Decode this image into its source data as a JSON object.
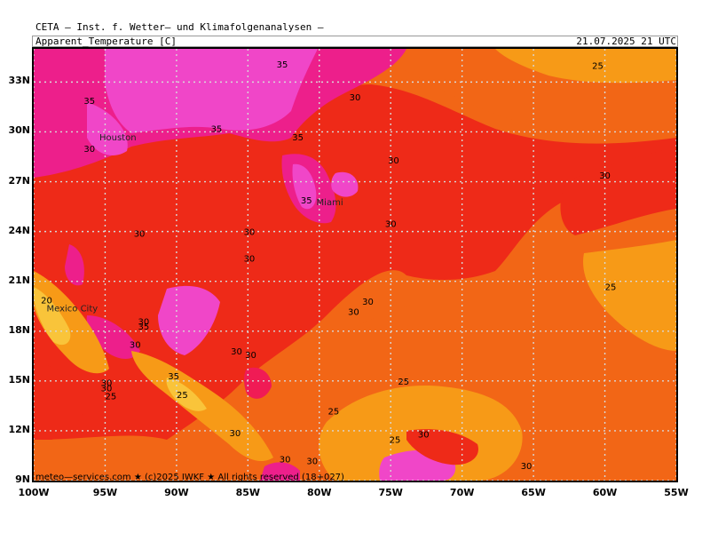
{
  "header": {
    "institute": "CETA — Inst. f. Wetter— und Klimafolgenanalysen —",
    "variable": "Apparent_Temperature [C]",
    "valid_time": "21.07.2025 21 UTC"
  },
  "axes": {
    "lat_labels": [
      "33N",
      "30N",
      "27N",
      "24N",
      "21N",
      "18N",
      "15N",
      "12N",
      "9N"
    ],
    "lon_labels": [
      "100W",
      "95W",
      "90W",
      "85W",
      "80W",
      "75W",
      "70W",
      "65W",
      "60W",
      "55W"
    ],
    "lat_values": [
      33,
      30,
      27,
      24,
      21,
      18,
      15,
      12,
      9
    ],
    "lon_values": [
      -100,
      -95,
      -90,
      -85,
      -80,
      -75,
      -70,
      -65,
      -60,
      -55
    ],
    "lat_range": [
      9,
      35
    ],
    "lon_range": [
      -100,
      -55
    ]
  },
  "places": [
    {
      "name": "Houston",
      "lat": 29.7,
      "lon": -95.4
    },
    {
      "name": "Miami",
      "lat": 25.8,
      "lon": -80.2
    },
    {
      "name": "Mexico City",
      "lat": 19.4,
      "lon": -99.1
    }
  ],
  "contour_labels": [
    {
      "text": "35",
      "lat": 34.1,
      "lon": -82.6
    },
    {
      "text": "35",
      "lat": 31.9,
      "lon": -96.1
    },
    {
      "text": "35",
      "lat": 30.2,
      "lon": -87.2
    },
    {
      "text": "35",
      "lat": 29.7,
      "lon": -81.5
    },
    {
      "text": "35",
      "lat": 25.9,
      "lon": -80.9
    },
    {
      "text": "35",
      "lat": 18.3,
      "lon": -92.3
    },
    {
      "text": "35",
      "lat": 15.3,
      "lon": -90.2
    },
    {
      "text": "30",
      "lat": 32.1,
      "lon": -77.5
    },
    {
      "text": "30",
      "lat": 29.0,
      "lon": -96.1
    },
    {
      "text": "30",
      "lat": 28.3,
      "lon": -74.8
    },
    {
      "text": "30",
      "lat": 27.4,
      "lon": -60.0
    },
    {
      "text": "30",
      "lat": 23.9,
      "lon": -92.6
    },
    {
      "text": "30",
      "lat": 24.0,
      "lon": -84.9
    },
    {
      "text": "30",
      "lat": 24.5,
      "lon": -75.0
    },
    {
      "text": "30",
      "lat": 22.4,
      "lon": -84.9
    },
    {
      "text": "30",
      "lat": 19.8,
      "lon": -76.6
    },
    {
      "text": "30",
      "lat": 19.2,
      "lon": -77.6
    },
    {
      "text": "30",
      "lat": 18.6,
      "lon": -92.3
    },
    {
      "text": "30",
      "lat": 17.2,
      "lon": -92.9
    },
    {
      "text": "30",
      "lat": 16.8,
      "lon": -85.8
    },
    {
      "text": "30",
      "lat": 16.6,
      "lon": -84.8
    },
    {
      "text": "30",
      "lat": 14.9,
      "lon": -94.9
    },
    {
      "text": "30",
      "lat": 14.6,
      "lon": -94.9
    },
    {
      "text": "30",
      "lat": 11.9,
      "lon": -85.9
    },
    {
      "text": "30",
      "lat": 10.3,
      "lon": -82.4
    },
    {
      "text": "30",
      "lat": 10.2,
      "lon": -80.5
    },
    {
      "text": "30",
      "lat": 11.8,
      "lon": -72.7
    },
    {
      "text": "30",
      "lat": 9.9,
      "lon": -65.5
    },
    {
      "text": "25",
      "lat": 34.0,
      "lon": -60.5
    },
    {
      "text": "25",
      "lat": 20.7,
      "lon": -59.6
    },
    {
      "text": "25",
      "lat": 15.0,
      "lon": -74.1
    },
    {
      "text": "25",
      "lat": 14.1,
      "lon": -94.6
    },
    {
      "text": "25",
      "lat": 14.2,
      "lon": -89.6
    },
    {
      "text": "25",
      "lat": 13.2,
      "lon": -79.0
    },
    {
      "text": "25",
      "lat": 11.5,
      "lon": -74.7
    },
    {
      "text": "20",
      "lat": 19.9,
      "lon": -99.1
    }
  ],
  "color_scale": {
    "20": "#f9c43a",
    "25": "#f79a17",
    "28": "#f26616",
    "30": "#ee2a18",
    "33": "#f01b55",
    "35": "#ed1f8b",
    "40": "#f046c8"
  },
  "footer": "meteo—services.com ★ (c)2025 IWKF ★ All rights reserved (18+027)"
}
